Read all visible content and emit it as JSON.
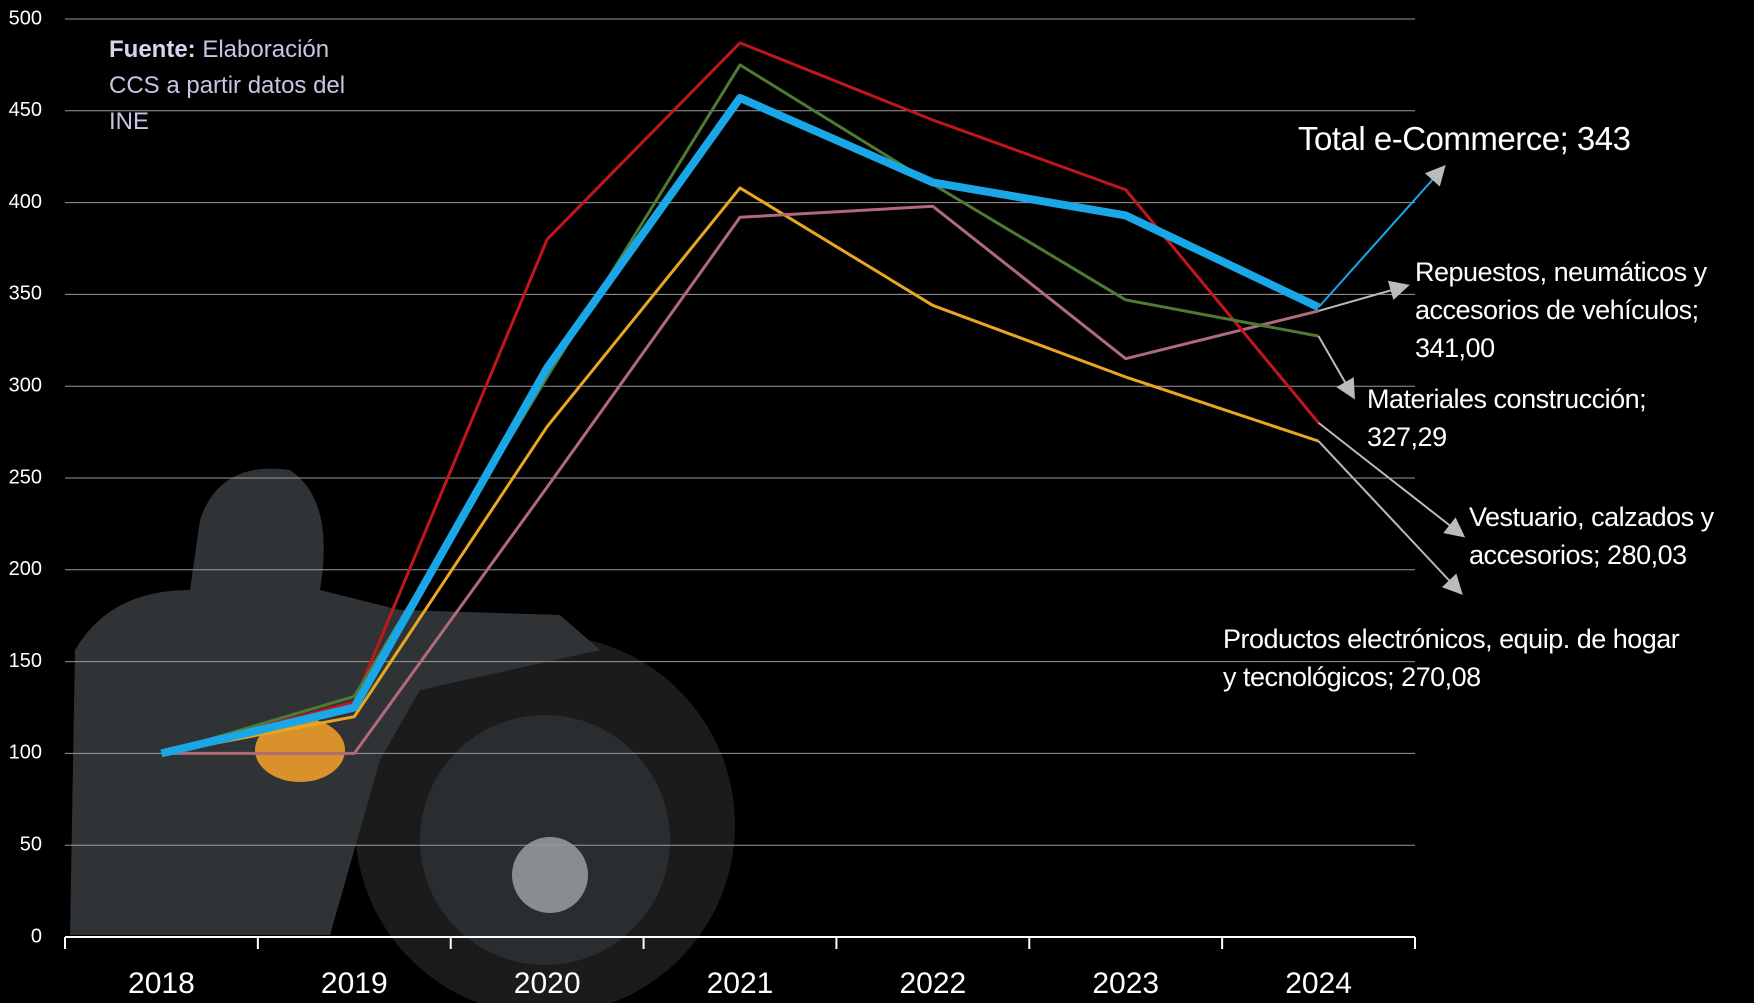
{
  "chart_data": {
    "type": "line",
    "source_label": "Fuente:",
    "source": "Elaboración CCS a partir datos del INE",
    "categories": [
      "2018",
      "2019",
      "2020",
      "2021",
      "2022",
      "2023",
      "2024"
    ],
    "series": [
      {
        "name": "Productos electrónicos, equip. de hogar y tecnológicos; 270,08",
        "color": "#e8a623",
        "values": [
          100,
          120,
          278,
          408,
          344,
          305,
          270.08
        ]
      },
      {
        "name": "Repuestos, neumáticos y accesorios de vehículos; 341,00",
        "color": "#b06a7a",
        "values": [
          100,
          100,
          245,
          392,
          398,
          315,
          341.0
        ]
      },
      {
        "name": "Vestuario, calzados y accesorios; 280,03",
        "color": "#c0161c",
        "values": [
          100,
          128,
          380,
          487,
          445,
          407,
          280.03
        ]
      },
      {
        "name": "Materiales construcción; 327,29",
        "color": "#4f7a32",
        "values": [
          100,
          131,
          305,
          475,
          410,
          347,
          327.29
        ]
      },
      {
        "name": "Total e-Commerce; 343",
        "color": "#1aa7e8",
        "values": [
          100,
          125,
          310,
          457,
          411,
          393,
          343
        ]
      }
    ],
    "ylim": [
      0,
      500
    ],
    "yticks": [
      0,
      50,
      100,
      150,
      200,
      250,
      300,
      350,
      400,
      450,
      500
    ],
    "grid": true
  }
}
